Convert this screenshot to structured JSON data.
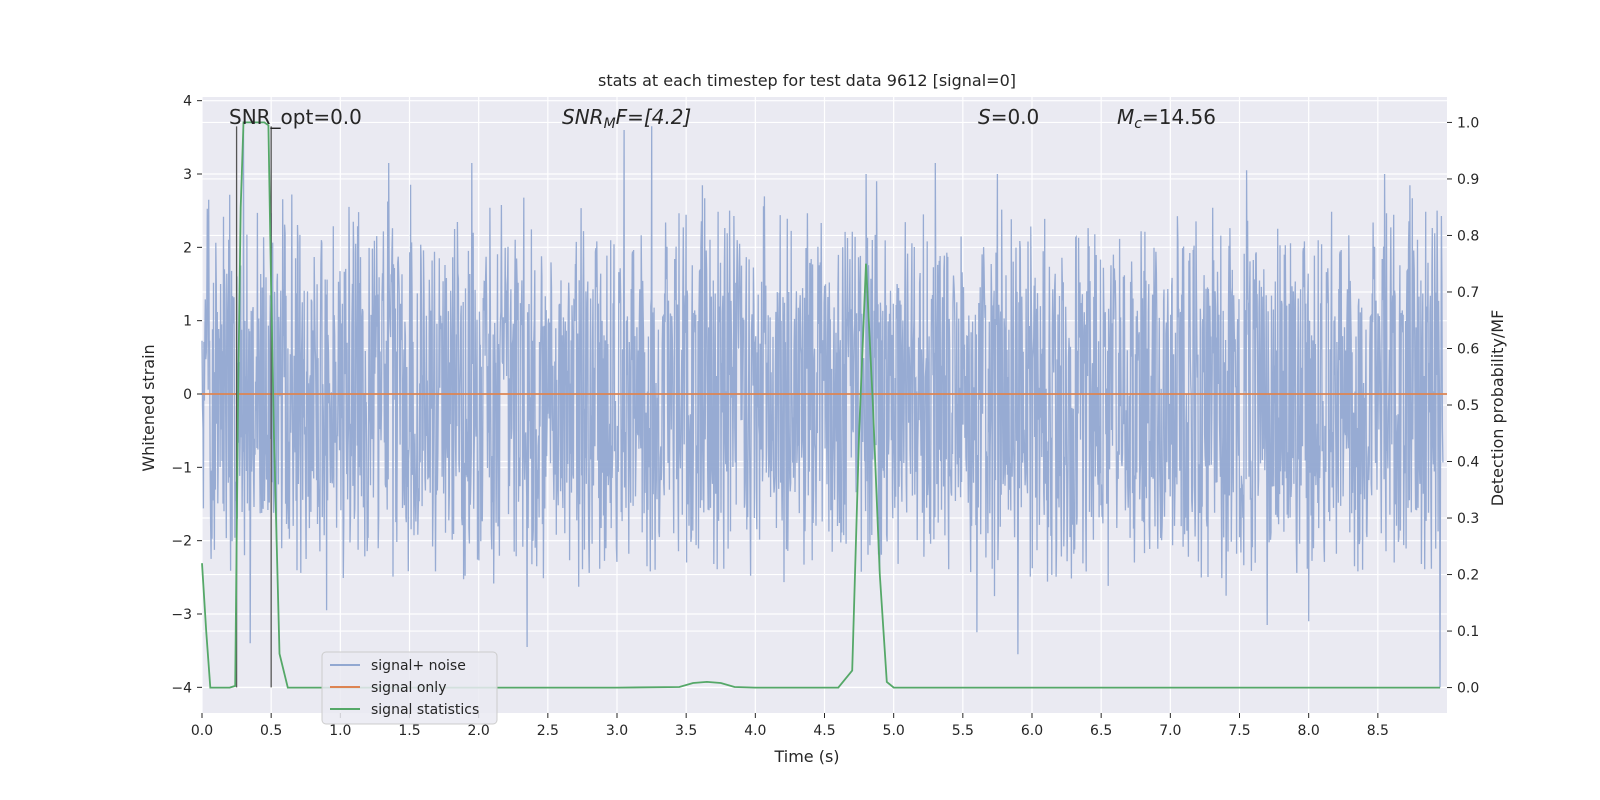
{
  "chart_data": {
    "type": "line",
    "title": "stats at each timestep for test data 9612 [signal=0]",
    "xlabel": "Time (s)",
    "ylabel_left": "Whitened strain",
    "ylabel_right": "Detection probability/MF",
    "xlim": [
      0.0,
      9.0
    ],
    "ylim_left": [
      -4.35,
      4.05
    ],
    "ylim_right": [
      -0.045,
      1.045
    ],
    "xticks": [
      0.0,
      0.5,
      1.0,
      1.5,
      2.0,
      2.5,
      3.0,
      3.5,
      4.0,
      4.5,
      5.0,
      5.5,
      6.0,
      6.5,
      7.0,
      7.5,
      8.0,
      8.5
    ],
    "xtick_labels": [
      "0.0",
      "0.5",
      "1.0",
      "1.5",
      "2.0",
      "2.5",
      "3.0",
      "3.5",
      "4.0",
      "4.5",
      "5.0",
      "5.5",
      "6.0",
      "6.5",
      "7.0",
      "7.5",
      "8.0",
      "8.5"
    ],
    "yticks_left": [
      -4,
      -3,
      -2,
      -1,
      0,
      1,
      2,
      3,
      4
    ],
    "ytick_labels_left": [
      "−4",
      "−3",
      "−2",
      "−1",
      "0",
      "1",
      "2",
      "3",
      "4"
    ],
    "yticks_right": [
      0.0,
      0.1,
      0.2,
      0.3,
      0.4,
      0.5,
      0.6,
      0.7,
      0.8,
      0.9,
      1.0
    ],
    "ytick_labels_right": [
      "0.0",
      "0.1",
      "0.2",
      "0.3",
      "0.4",
      "0.5",
      "0.6",
      "0.7",
      "0.8",
      "0.9",
      "1.0"
    ],
    "grid": true,
    "legend_position": "bottom-left",
    "annotations": {
      "snr_opt": "SNR_opt=0.0",
      "snr_mf_main": "SNR",
      "snr_mf_sub": "M",
      "snr_mf_rest": "F=[4.2]",
      "s_main": "S",
      "s_rest": "=0.0",
      "mc_main": "M",
      "mc_sub": "c",
      "mc_rest": "=14.56"
    },
    "vertical_markers": [
      0.25,
      0.5
    ],
    "series": [
      {
        "name": "signal+ noise",
        "color": "#92a8d1",
        "axis": "left",
        "envelope": {
          "typical_max": 2.0,
          "typical_min": -2.0,
          "peak_max": 3.65,
          "peak_min": -4.0
        },
        "peaks": [
          [
            0.05,
            2.65
          ],
          [
            0.3,
            3.6
          ],
          [
            0.9,
            2.6
          ],
          [
            1.35,
            3.15
          ],
          [
            1.95,
            3.15
          ],
          [
            2.35,
            2.9
          ],
          [
            3.05,
            3.6
          ],
          [
            3.25,
            3.65
          ],
          [
            4.8,
            3.0
          ],
          [
            5.3,
            3.15
          ],
          [
            5.75,
            3.0
          ],
          [
            7.55,
            3.05
          ],
          [
            8.55,
            3.0
          ],
          [
            0.35,
            -3.4
          ],
          [
            0.9,
            -2.95
          ],
          [
            2.35,
            -3.45
          ],
          [
            5.6,
            -3.25
          ],
          [
            5.9,
            -3.55
          ],
          [
            7.7,
            -3.15
          ],
          [
            8.0,
            -3.1
          ],
          [
            8.95,
            -4.0
          ]
        ]
      },
      {
        "name": "signal only",
        "color": "#dd8452",
        "axis": "left",
        "x": [
          0.0,
          9.0
        ],
        "y": [
          0.0,
          0.0
        ]
      },
      {
        "name": "signal statistics",
        "color": "#55a868",
        "axis": "right",
        "x": [
          0.0,
          0.03,
          0.06,
          0.1,
          0.15,
          0.2,
          0.24,
          0.26,
          0.28,
          0.3,
          0.35,
          0.4,
          0.45,
          0.48,
          0.5,
          0.52,
          0.56,
          0.62,
          0.7,
          1.0,
          2.0,
          3.0,
          3.45,
          3.55,
          3.65,
          3.75,
          3.85,
          4.0,
          4.6,
          4.7,
          4.75,
          4.8,
          4.85,
          4.9,
          4.95,
          5.0,
          5.5,
          6.0,
          7.0,
          8.0,
          8.95
        ],
        "y": [
          0.22,
          0.1,
          0.0,
          0.0,
          0.0,
          0.0,
          0.003,
          0.5,
          0.85,
          1.0,
          1.0,
          1.0,
          1.0,
          0.995,
          0.7,
          0.45,
          0.06,
          0.0,
          0.0,
          0.0,
          0.0,
          0.0,
          0.001,
          0.008,
          0.01,
          0.008,
          0.001,
          0.0,
          0.0,
          0.03,
          0.45,
          0.75,
          0.5,
          0.2,
          0.01,
          0.0,
          0.0,
          0.0,
          0.0,
          0.0,
          0.0
        ]
      }
    ]
  }
}
